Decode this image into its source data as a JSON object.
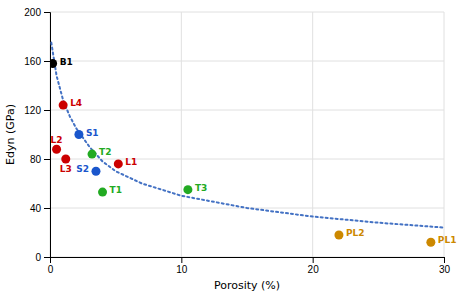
{
  "chart_data": {
    "type": "scatter",
    "xlabel": "Porosity (%)",
    "ylabel": "Edyn (GPa)",
    "xlim": [
      0,
      30
    ],
    "ylim": [
      0,
      200
    ],
    "xticks": [
      0,
      10,
      20,
      30
    ],
    "yticks": [
      0,
      40,
      80,
      120,
      160,
      200
    ],
    "grid": true,
    "series": [
      {
        "type": "line",
        "color": "#4472c4",
        "line_style": "dotted",
        "x": [
          0.1,
          0.5,
          1.0,
          1.5,
          2.0,
          3.0,
          4.0,
          5.0,
          7.0,
          10.0,
          15.0,
          20.0,
          25.0,
          30.0
        ],
        "values": [
          175,
          148,
          128,
          115,
          105,
          90,
          78,
          70,
          60,
          50,
          40,
          33,
          28,
          24
        ]
      },
      {
        "type": "scatter",
        "marker": "circle",
        "x": [
          0.2,
          1.0,
          0.5,
          1.2,
          2.2,
          3.5,
          4.0,
          3.2,
          10.5,
          5.2,
          22.0,
          29.0
        ],
        "values": [
          158,
          124,
          88,
          80,
          100,
          70,
          53,
          84,
          55,
          76,
          18,
          12
        ],
        "labels": [
          "B1",
          "L4",
          "L2",
          "L3",
          "S1",
          "S2",
          "T1",
          "T2",
          "T3",
          "L1",
          "PL2",
          "PL1"
        ],
        "colors": [
          "#000000",
          "#cc0000",
          "#cc0000",
          "#cc0000",
          "#1a56cc",
          "#1a56cc",
          "#22aa22",
          "#22aa22",
          "#22aa22",
          "#cc0000",
          "#cc8800",
          "#cc8800"
        ]
      }
    ]
  }
}
